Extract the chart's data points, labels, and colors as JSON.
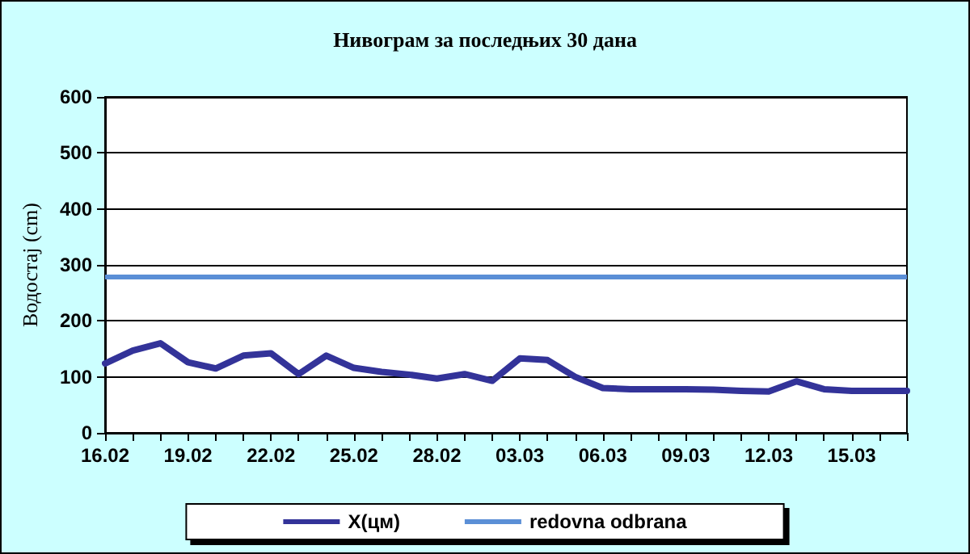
{
  "chart_data": {
    "type": "line",
    "title": "Нивограм за последњих 30 дана",
    "ylabel": "Водостај (cm)",
    "categories": [
      "16.02",
      null,
      null,
      "19.02",
      null,
      null,
      "22.02",
      null,
      null,
      "25.02",
      null,
      null,
      "28.02",
      null,
      null,
      "03.03",
      null,
      null,
      "06.03",
      null,
      null,
      "09.03",
      null,
      null,
      "12.03",
      null,
      null,
      "15.03",
      null,
      null
    ],
    "series": [
      {
        "name": "X(цм)",
        "color": "#333399",
        "values": [
          124,
          147,
          160,
          126,
          115,
          138,
          142,
          105,
          138,
          116,
          109,
          104,
          97,
          105,
          93,
          133,
          130,
          100,
          80,
          78,
          78,
          78,
          77,
          75,
          74,
          92,
          78,
          75,
          75,
          75
        ]
      }
    ],
    "ylim": [
      0,
      600
    ],
    "yticks": [
      0,
      100,
      200,
      300,
      400,
      500,
      600
    ],
    "grid": "y",
    "legend": "bottom",
    "marker": "none",
    "line_style": "solid",
    "ref_lines": [
      {
        "axis": "y",
        "value": 280,
        "label": "redovna odbrana",
        "color": "#5b8fd6",
        "line_style": "solid"
      }
    ]
  }
}
